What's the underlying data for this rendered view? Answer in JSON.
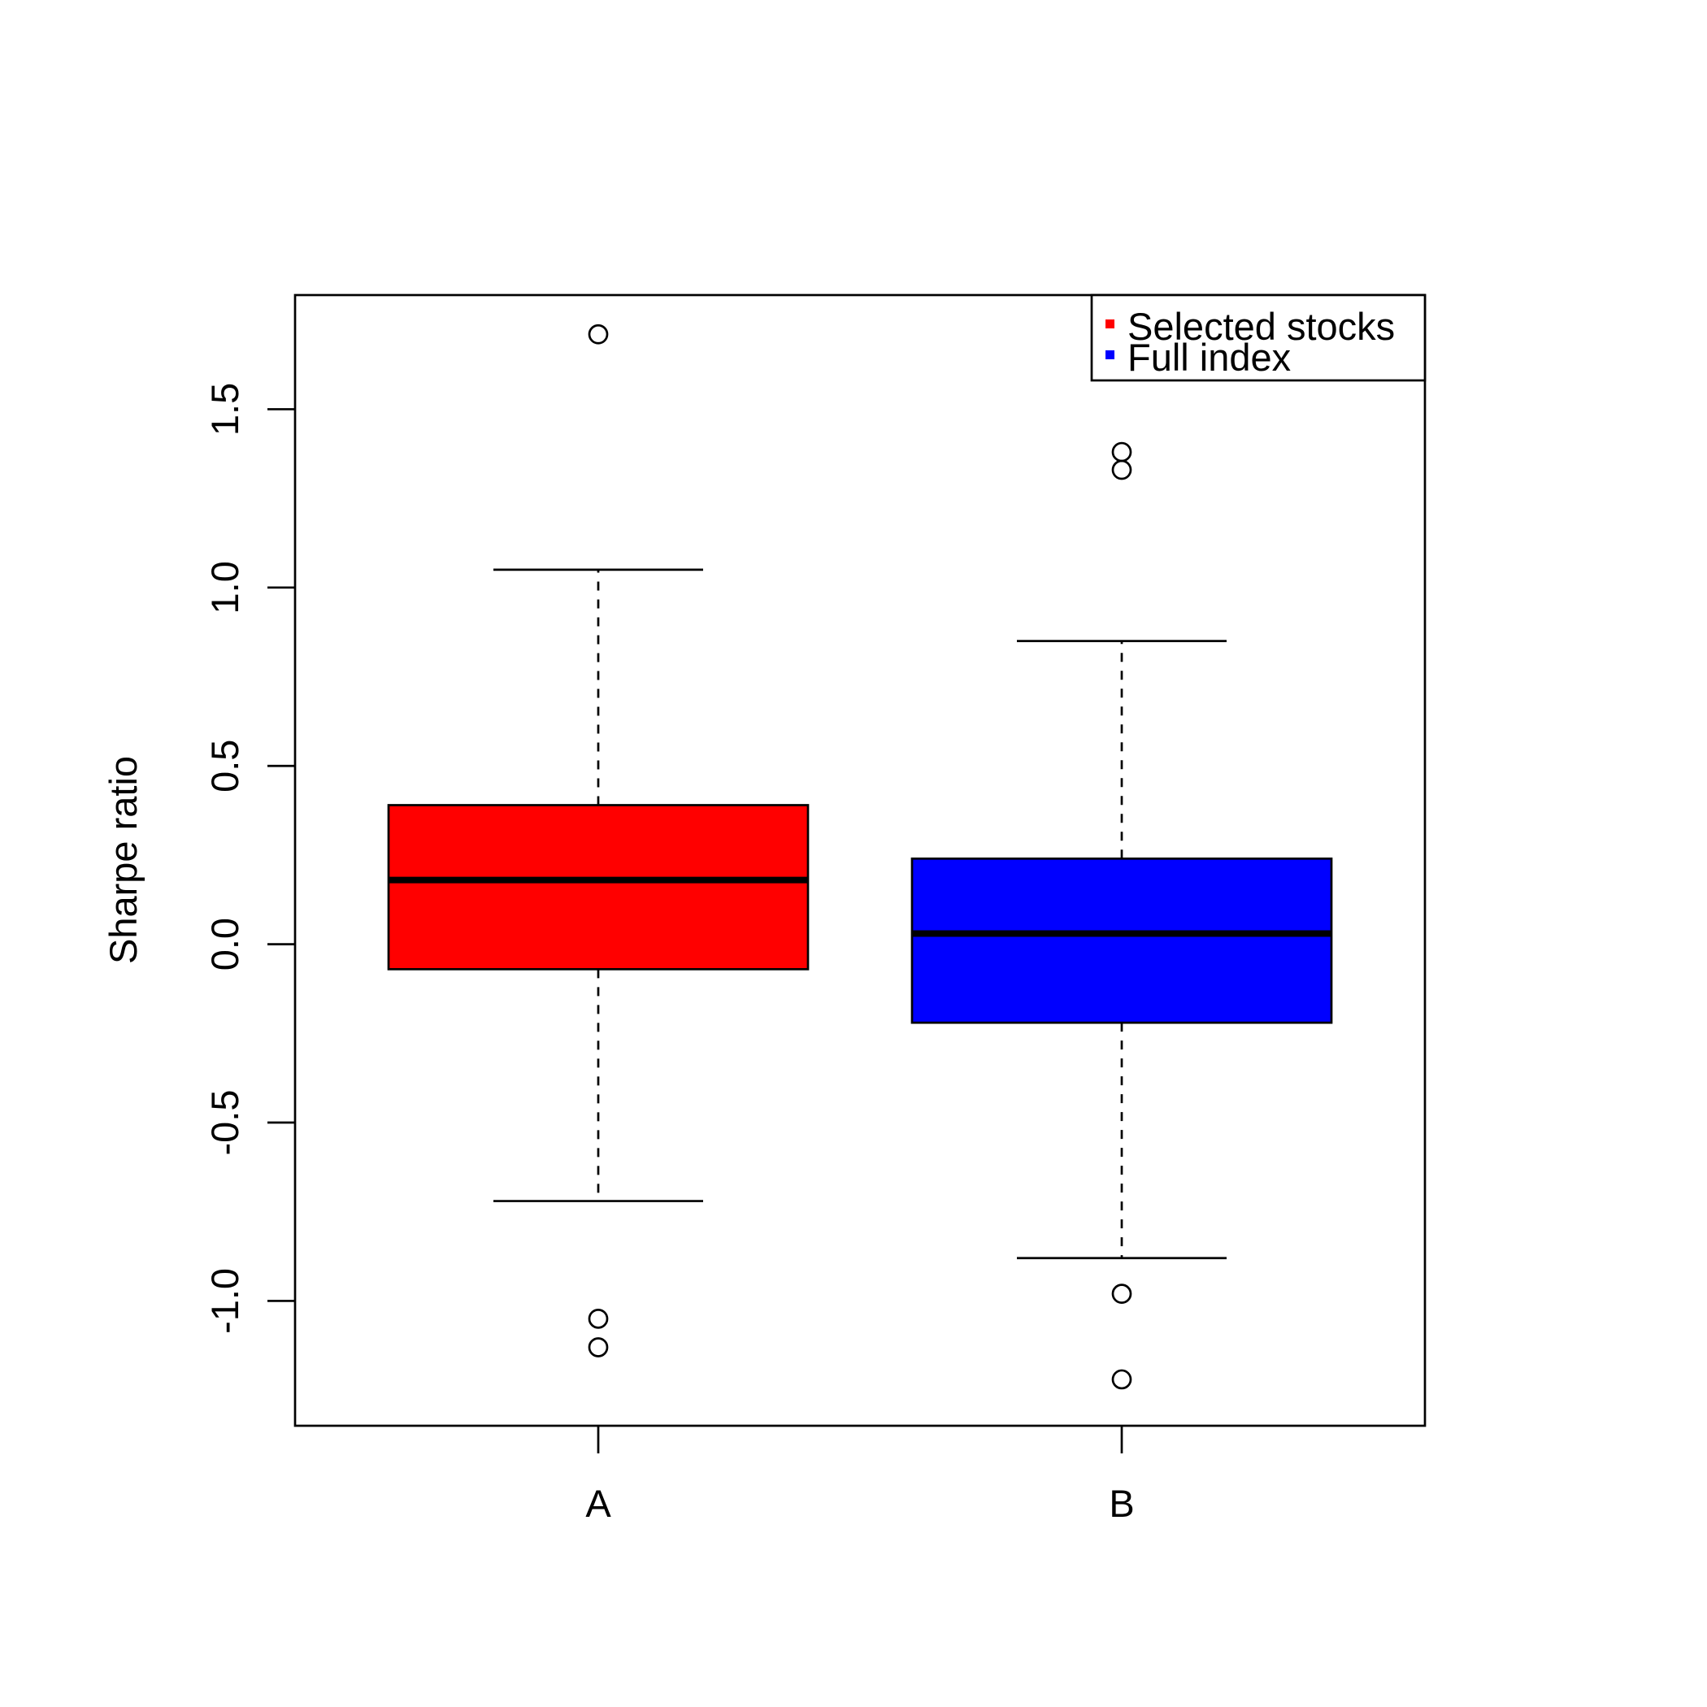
{
  "chart_data": {
    "type": "boxplot",
    "title": "",
    "xlabel": "",
    "ylabel": "Sharpe ratio",
    "ylim": [
      -1.35,
      1.82
    ],
    "yticks": [
      "-1.0",
      "-0.5",
      "0.0",
      "0.5",
      "1.0",
      "1.5"
    ],
    "ytick_values": [
      -1.0,
      -0.5,
      0.0,
      0.5,
      1.0,
      1.5
    ],
    "categories": [
      "A",
      "B"
    ],
    "series": [
      {
        "category": "A",
        "color": "#ff0000",
        "whisker_low": -0.72,
        "q1": -0.07,
        "median": 0.18,
        "q3": 0.39,
        "whisker_high": 1.05,
        "outliers": [
          1.71,
          -1.05,
          -1.13
        ]
      },
      {
        "category": "B",
        "color": "#0000ff",
        "whisker_low": -0.88,
        "q1": -0.22,
        "median": 0.03,
        "q3": 0.24,
        "whisker_high": 0.85,
        "outliers": [
          1.38,
          1.33,
          -0.98,
          -1.22
        ]
      }
    ],
    "legend": {
      "position": "top-right",
      "items": [
        {
          "label": "Selected stocks",
          "color": "#ff0000"
        },
        {
          "label": "Full index",
          "color": "#0000ff"
        }
      ]
    },
    "grid": false
  }
}
